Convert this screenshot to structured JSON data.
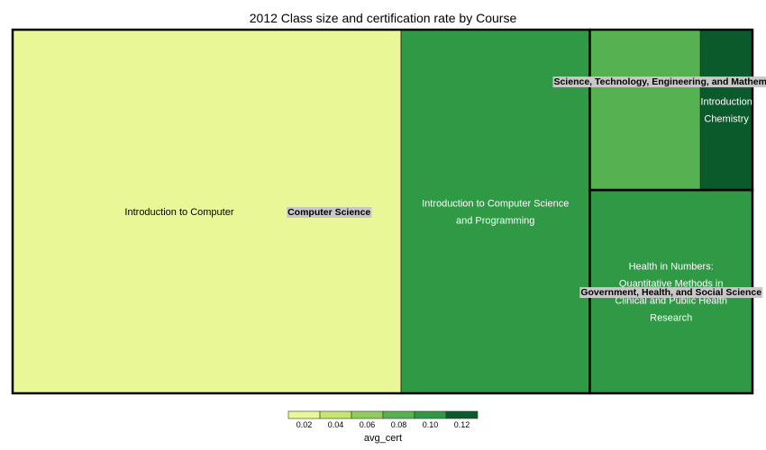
{
  "chart_data": {
    "type": "treemap",
    "title": "2012 Class size and certification rate by Course",
    "groups": [
      {
        "name": "Computer Science",
        "courses": [
          {
            "name": "Introduction to Computer",
            "avg_cert": 0.01,
            "size": 0.525
          },
          {
            "name": "Introduction to Computer Science and Programming",
            "avg_cert": 0.1,
            "size": 0.255
          }
        ]
      },
      {
        "name": "Science, Technology, Engineering, and Mathematics",
        "courses": [
          {
            "name": "",
            "avg_cert": 0.09,
            "size": 0.066
          },
          {
            "name": "Introduction Chemistry",
            "avg_cert": 0.13,
            "size": 0.031
          }
        ]
      },
      {
        "name": "Government, Health, and Social Science",
        "courses": [
          {
            "name": "Health in Numbers: Quantitative Methods in Clinical and Public Health Research",
            "avg_cert": 0.1,
            "size": 0.123
          }
        ]
      }
    ],
    "legend": {
      "title": "avg_cert",
      "ticks": [
        "0.02",
        "0.04",
        "0.06",
        "0.08",
        "0.10",
        "0.12"
      ],
      "colors": [
        "#eaf796",
        "#c3e66f",
        "#8fcd5c",
        "#56b250",
        "#2f9946",
        "#0b5a2c"
      ]
    }
  }
}
